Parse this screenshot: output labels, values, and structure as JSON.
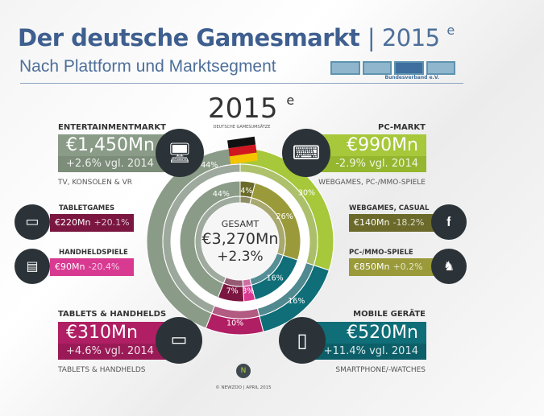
{
  "header": {
    "title": "Der deutsche Gamesmarkt",
    "separator": "|",
    "year": "2015",
    "year_sup": "e",
    "subtitle": "Nach Plattform und Marktsegment",
    "logo_text": "GAME",
    "logo_sub": "Bundesverband e.V."
  },
  "center_year": {
    "year": "2015",
    "sup": "e",
    "sub": "DEUTSCHE GAMESUMSÄTZE"
  },
  "total": {
    "label": "GESAMT",
    "value": "€3,270Mn",
    "change": "+2.3%"
  },
  "segments": {
    "entertainment": {
      "label": "ENTERTAINMENTMARKT",
      "value": "€1,450Mn",
      "change": "+2.6% vgl. 2014",
      "desc": "TV, KONSOLEN & VR",
      "icon": "tv-console-vr-icon",
      "color": "#8a9c88"
    },
    "pc": {
      "label": "PC-MARKT",
      "value": "€990Mn",
      "change": "-2.9% vgl. 2014",
      "desc": "WEBGAMES, PC-/MMO-SPIELE",
      "icon": "pc-icon",
      "color": "#a6c83a"
    },
    "tablets": {
      "label": "TABLETS & HANDHELDS",
      "value": "€310Mn",
      "change": "+4.6% vgl. 2014",
      "desc": "TABLETS & HANDHELDS",
      "icon": "tablet-handheld-icon",
      "color": "#b01f63"
    },
    "mobile": {
      "label": "MOBILE GERÄTE",
      "value": "€520Mn",
      "change": "+11.4% vgl. 2014",
      "desc": "SMARTPHONE/-WATCHES",
      "icon": "smartphone-watch-icon",
      "color": "#0f6e78"
    }
  },
  "subsegments": {
    "tabletgames": {
      "label": "TABLETGAMES",
      "value": "€220Mn",
      "change": "+20.1%",
      "icon": "tablet-icon",
      "color": "#7a1640"
    },
    "handheld": {
      "label": "HANDHELDSPIELE",
      "value": "€90Mn",
      "change": "-20.4%",
      "icon": "handheld-console-icon",
      "color": "#d83a92"
    },
    "webgames": {
      "label": "WEBGAMES, CASUAL",
      "value": "€140Mn",
      "change": "-18.2%",
      "icon": "browser-icon",
      "color": "#6b6a2a"
    },
    "pcmmo": {
      "label": "PC-/MMO-SPIELE",
      "value": "€850Mn",
      "change": "+0.2%",
      "icon": "pc-mmo-icon",
      "color": "#9a9a3a"
    }
  },
  "footer": {
    "credit": "© NEWZOO | APRIL 2015"
  },
  "chart_data": {
    "type": "pie",
    "outer_ring": {
      "categories": [
        "PC-Markt",
        "Mobile Geräte",
        "Tablets & Handhelds",
        "Entertainmentmarkt"
      ],
      "values": [
        30,
        16,
        10,
        44
      ],
      "labels": [
        "30%",
        "16%",
        "10%",
        "44%"
      ],
      "colors": [
        "#a6c83a",
        "#0f6e78",
        "#b01f63",
        "#8a9c88"
      ]
    },
    "inner_ring": {
      "categories": [
        "Webgames, Casual",
        "PC-/MMO-Spiele",
        "Mobile Geräte",
        "Handheldspiele",
        "Tabletgames",
        "Entertainmentmarkt"
      ],
      "values": [
        4,
        26,
        16,
        3,
        7,
        44
      ],
      "labels": [
        "4%",
        "26%",
        "16%",
        "3%",
        "7%",
        "44%"
      ],
      "colors": [
        "#6b6a2a",
        "#9a9a3a",
        "#0f6e78",
        "#d83a92",
        "#7a1640",
        "#8a9c88"
      ]
    }
  }
}
